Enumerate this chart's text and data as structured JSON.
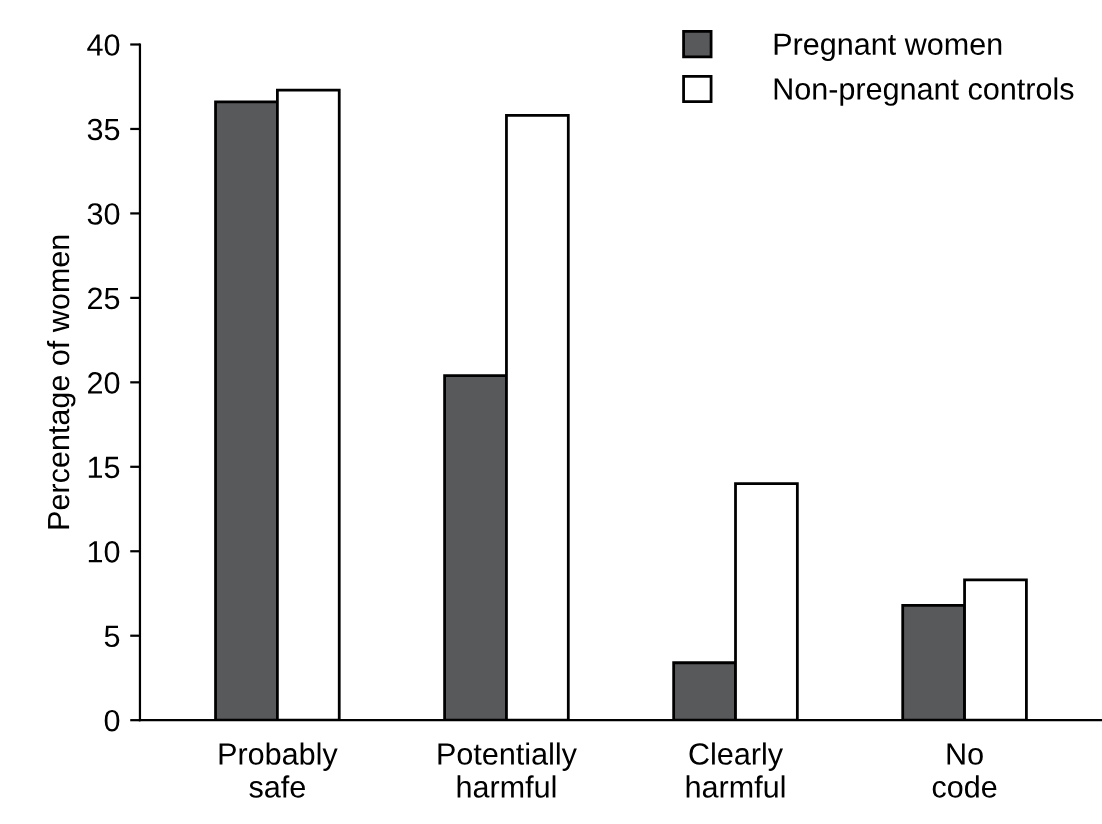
{
  "chart_data": {
    "type": "bar",
    "ylabel": "Percentage of women",
    "categories": [
      "Probably\nsafe",
      "Potentially\nharmful",
      "Clearly\nharmful",
      "No\ncode"
    ],
    "series": [
      {
        "name": "Pregnant women",
        "color": "#58595b",
        "values": [
          36.6,
          20.4,
          3.4,
          6.8
        ]
      },
      {
        "name": "Non-pregnant controls",
        "color": "#ffffff",
        "values": [
          37.3,
          35.8,
          14.0,
          8.3
        ]
      }
    ],
    "ylim": [
      0,
      40
    ],
    "yticks": [
      0,
      5,
      10,
      15,
      20,
      25,
      30,
      35,
      40
    ],
    "grid": false,
    "legend": "top right"
  }
}
